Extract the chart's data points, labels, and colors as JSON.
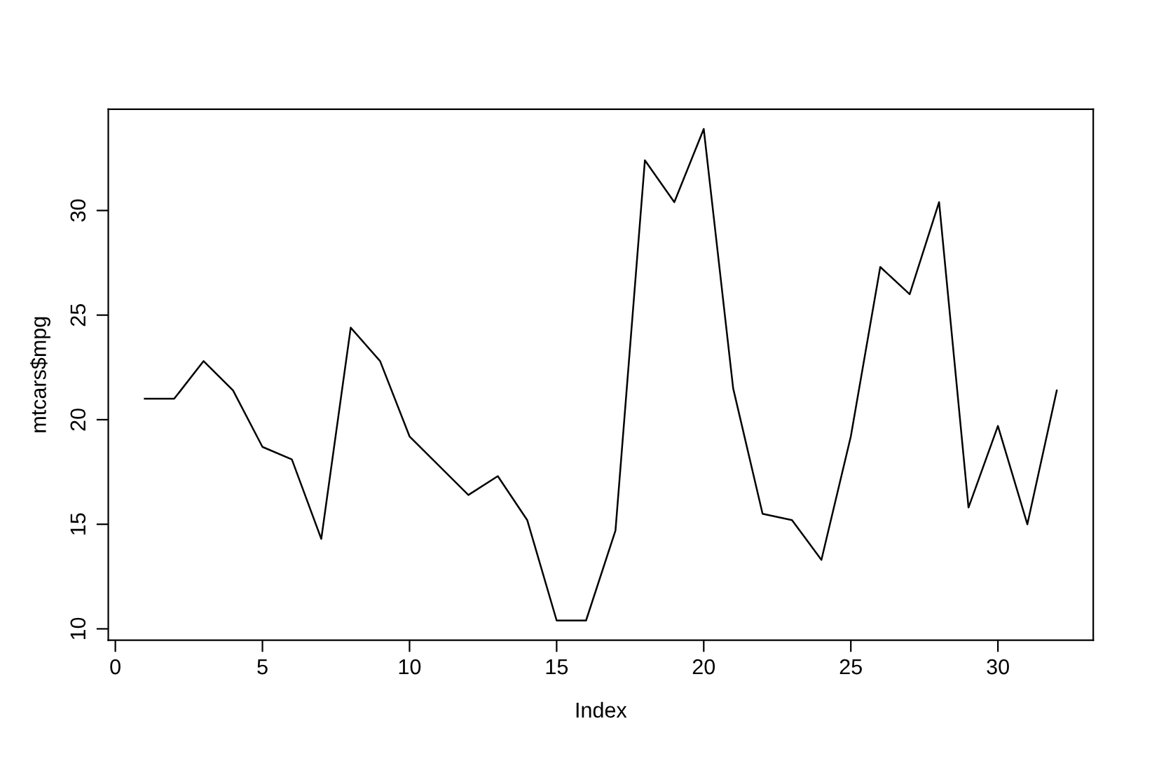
{
  "chart_data": {
    "type": "line",
    "xlabel": "Index",
    "ylabel": "mtcars$mpg",
    "x": [
      1,
      2,
      3,
      4,
      5,
      6,
      7,
      8,
      9,
      10,
      11,
      12,
      13,
      14,
      15,
      16,
      17,
      18,
      19,
      20,
      21,
      22,
      23,
      24,
      25,
      26,
      27,
      28,
      29,
      30,
      31,
      32
    ],
    "series": [
      {
        "color": "#000000",
        "values": [
          21.0,
          21.0,
          22.8,
          21.4,
          18.7,
          18.1,
          14.3,
          24.4,
          22.8,
          19.2,
          17.8,
          16.4,
          17.3,
          15.2,
          10.4,
          10.4,
          14.7,
          32.4,
          30.4,
          33.9,
          21.5,
          15.5,
          15.2,
          13.3,
          19.2,
          27.3,
          26.0,
          30.4,
          15.8,
          19.7,
          15.0,
          21.4
        ]
      }
    ],
    "xlim": [
      -0.24,
      33.24
    ],
    "ylim": [
      9.46,
      34.84
    ],
    "xticks": [
      0,
      5,
      10,
      15,
      20,
      25,
      30
    ],
    "yticks": [
      10,
      15,
      20,
      25,
      30
    ],
    "grid": false,
    "legend": false,
    "marker": "none",
    "line_style": "solid"
  }
}
